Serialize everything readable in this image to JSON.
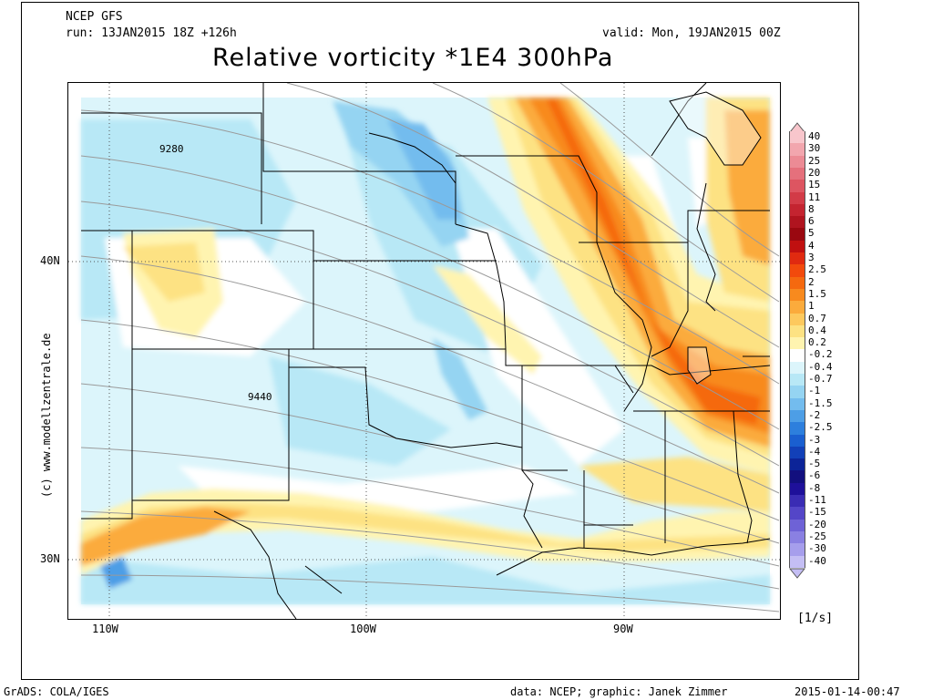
{
  "header": {
    "model": "NCEP GFS",
    "run": "run: 13JAN2015 18Z +126h",
    "valid": "valid: Mon, 19JAN2015 00Z",
    "title": "Relative vorticity *1E4 300hPa"
  },
  "map": {
    "lat_labels": [
      "40N",
      "30N"
    ],
    "lon_labels": [
      "110W",
      "100W",
      "90W"
    ],
    "contour_labels": [
      "9280",
      "9440"
    ],
    "site_credit": "(c) www.modellzentrale.de"
  },
  "legend": {
    "unit": "[1/s]",
    "entries": [
      {
        "label": "40",
        "color": "#f8c6cc"
      },
      {
        "label": "30",
        "color": "#f2a6ae"
      },
      {
        "label": "25",
        "color": "#ec8b95"
      },
      {
        "label": "20",
        "color": "#e5707c"
      },
      {
        "label": "15",
        "color": "#dd5561"
      },
      {
        "label": "11",
        "color": "#d23b47"
      },
      {
        "label": "8",
        "color": "#c42430"
      },
      {
        "label": "6",
        "color": "#b0141f"
      },
      {
        "label": "5",
        "color": "#9a0810"
      },
      {
        "label": "4",
        "color": "#c01010"
      },
      {
        "label": "3",
        "color": "#e02a10"
      },
      {
        "label": "2.5",
        "color": "#f24a0c"
      },
      {
        "label": "2",
        "color": "#f5690f"
      },
      {
        "label": "1.5",
        "color": "#f88a1e"
      },
      {
        "label": "1",
        "color": "#fbab3c"
      },
      {
        "label": "0.7",
        "color": "#fdc95e"
      },
      {
        "label": "0.4",
        "color": "#fde283"
      },
      {
        "label": "0.2",
        "color": "#fff4b0"
      },
      {
        "label": "-0.2",
        "color": "#ffffff"
      },
      {
        "label": "-0.4",
        "color": "#dcf5fb"
      },
      {
        "label": "-0.7",
        "color": "#b8e8f6"
      },
      {
        "label": "-1",
        "color": "#95d4f2"
      },
      {
        "label": "-1.5",
        "color": "#73bcee"
      },
      {
        "label": "-2",
        "color": "#4d9ee6"
      },
      {
        "label": "-2.5",
        "color": "#2d7fdd"
      },
      {
        "label": "-3",
        "color": "#1a5fd0"
      },
      {
        "label": "-4",
        "color": "#1240b8"
      },
      {
        "label": "-5",
        "color": "#0c2498"
      },
      {
        "label": "-6",
        "color": "#120f7e"
      },
      {
        "label": "-8",
        "color": "#1e109a"
      },
      {
        "label": "-11",
        "color": "#3a2cb4"
      },
      {
        "label": "-15",
        "color": "#5446c8"
      },
      {
        "label": "-20",
        "color": "#6e62d6"
      },
      {
        "label": "-25",
        "color": "#8a80e2"
      },
      {
        "label": "-30",
        "color": "#a69eec"
      },
      {
        "label": "-40",
        "color": "#c4bef4"
      }
    ]
  },
  "footer": {
    "software": "GrADS: COLA/IGES",
    "source": "data: NCEP; graphic: Janek Zimmer",
    "timestamp": "2015-01-14-00:47"
  }
}
